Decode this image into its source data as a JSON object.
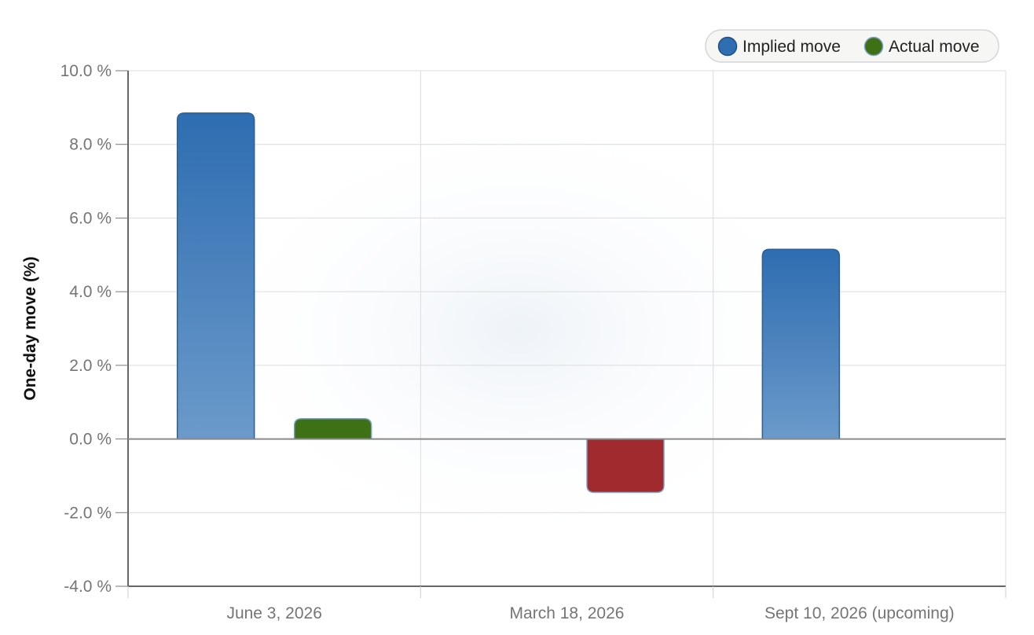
{
  "chart_data": {
    "type": "bar",
    "categories": [
      "June 3, 2026",
      "March 18, 2026",
      "Sept 10, 2026 (upcoming)"
    ],
    "series": [
      {
        "name": "Implied move",
        "values": [
          8.85,
          null,
          5.15
        ],
        "color": "#2f6eb0"
      },
      {
        "name": "Actual move",
        "values": [
          0.55,
          -1.45,
          null
        ],
        "color": "#3e7016",
        "negative_color": "#a02a2d"
      }
    ],
    "xlabel": "",
    "ylabel": "One-day move (%)",
    "ylim": [
      -4,
      10
    ],
    "yticks": [
      10,
      8,
      6,
      4,
      2,
      0,
      -2,
      -4
    ],
    "ytick_labels": [
      "10.0 %",
      "8.0 %",
      "6.0 %",
      "4.0 %",
      "2.0 %",
      "0.0 %",
      "-2.0 %",
      "-4.0 %"
    ],
    "grid": true,
    "legend_position": "top-right"
  }
}
